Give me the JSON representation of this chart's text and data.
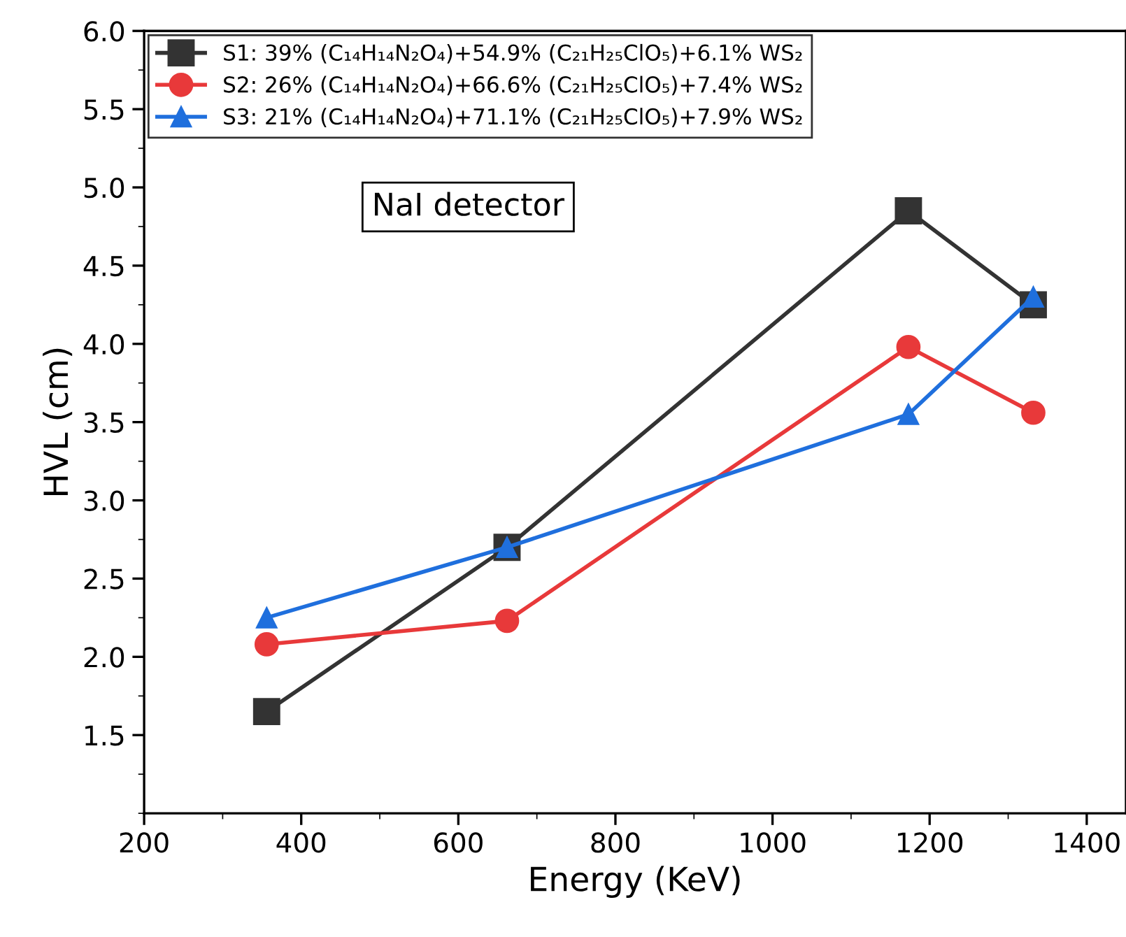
{
  "chart_data": {
    "type": "line",
    "xlabel": "Energy (KeV)",
    "ylabel": "HVL (cm)",
    "x": [
      356,
      662,
      1173,
      1332
    ],
    "series": [
      {
        "name": "S1: 39% (C₁₄H₁₄N₂O₄)+54.9% (C₂₁H₂₅ClO₅)+6.1% WS₂",
        "color": "#333333",
        "marker": "square",
        "values": [
          1.65,
          2.7,
          4.85,
          4.25
        ]
      },
      {
        "name": "S2: 26% (C₁₄H₁₄N₂O₄)+66.6% (C₂₁H₂₅ClO₅)+7.4% WS₂",
        "color": "#e8393a",
        "marker": "circle",
        "values": [
          2.08,
          2.23,
          3.98,
          3.56
        ]
      },
      {
        "name": "S3: 21% (C₁₄H₁₄N₂O₄)+71.1% (C₂₁H₂₅ClO₅)+7.9% WS₂",
        "color": "#1f6fdd",
        "marker": "triangle",
        "values": [
          2.25,
          2.7,
          3.55,
          4.3
        ]
      }
    ],
    "annotations": [
      "NaI detector"
    ],
    "xlim": [
      200,
      1450
    ],
    "xticks": [
      200,
      400,
      600,
      800,
      1000,
      1200,
      1400
    ],
    "ylim": [
      1.0,
      6.0
    ],
    "yticks": [
      {
        "value": 1.5,
        "label": "1.5"
      },
      {
        "value": 2.0,
        "label": "2.0"
      },
      {
        "value": 2.5,
        "label": "2.5"
      },
      {
        "value": 3.0,
        "label": "3.0"
      },
      {
        "value": 3.5,
        "label": "3.5"
      },
      {
        "value": 4.0,
        "label": "4.0"
      },
      {
        "value": 4.5,
        "label": "4.5"
      },
      {
        "value": 5.0,
        "label": "5.0"
      },
      {
        "value": 5.5,
        "label": "5.5"
      },
      {
        "value": 6.0,
        "label": "6.0"
      }
    ],
    "grid": false,
    "legend": "top left",
    "line_style": "solid"
  }
}
